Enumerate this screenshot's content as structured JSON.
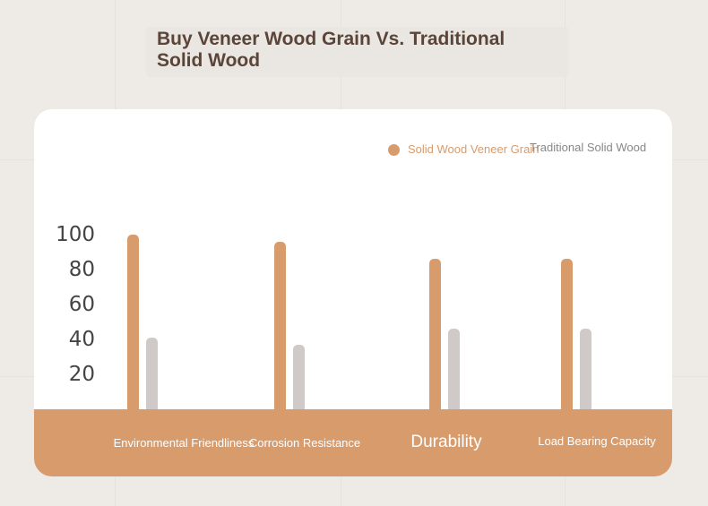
{
  "chart_data": {
    "type": "bar",
    "title": "Buy Veneer Wood Grain Vs. Traditional Solid Wood",
    "categories": [
      "Environmental Friendliness",
      "Corrosion Resistance",
      "Durability",
      "Load Bearing Capacity"
    ],
    "series": [
      {
        "name": "Solid Wood Veneer Grain",
        "values": [
          100,
          96,
          86,
          86
        ]
      },
      {
        "name": "Traditional Solid Wood",
        "values": [
          41,
          37,
          46,
          46
        ]
      }
    ],
    "y_ticks": [
      "100",
      "80",
      "60",
      "40",
      "20"
    ],
    "ylim": [
      0,
      100
    ],
    "legend_position": "top-right",
    "grid": false,
    "colors": {
      "veneer": "#d89b6c",
      "solid": "#cfcac8",
      "band": "#d89b6c",
      "title": "#5b4438"
    }
  }
}
